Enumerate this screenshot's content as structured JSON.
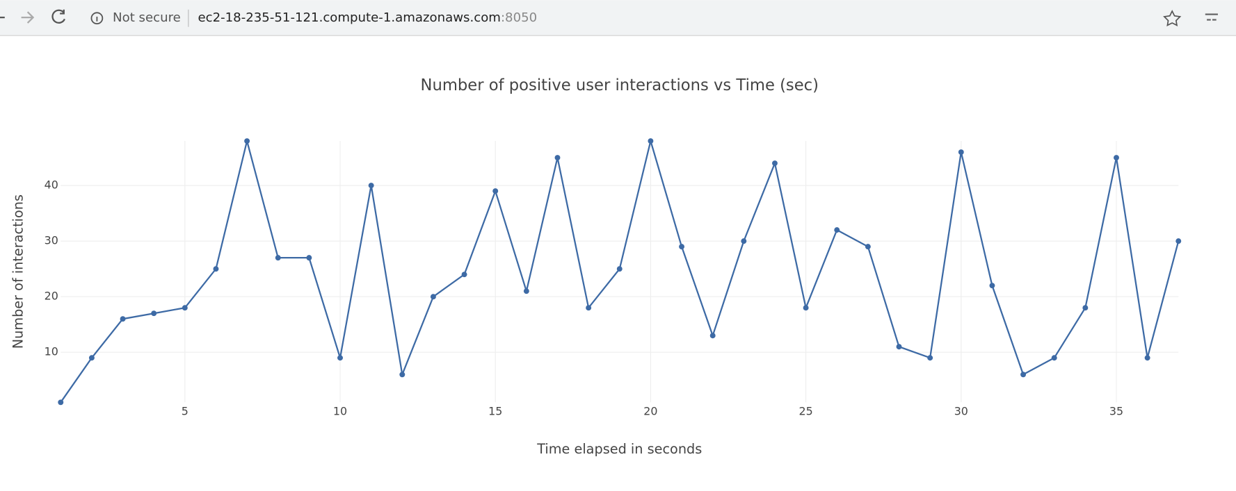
{
  "browser": {
    "security": "Not secure",
    "host": "ec2-18-235-51-121.compute-1.amazonaws.com",
    "port": ":8050"
  },
  "chart_data": {
    "type": "line",
    "title": "Number of positive user interactions vs Time (sec)",
    "x_label": "Time elapsed in seconds",
    "y_label": "Number of interactions",
    "x": [
      1,
      2,
      3,
      4,
      5,
      6,
      7,
      8,
      9,
      10,
      11,
      12,
      13,
      14,
      15,
      16,
      17,
      18,
      19,
      20,
      21,
      22,
      23,
      24,
      25,
      26,
      27,
      28,
      29,
      30,
      31,
      32,
      33,
      34,
      35,
      36,
      37
    ],
    "values": [
      1,
      9,
      16,
      17,
      18,
      25,
      48,
      27,
      27,
      9,
      40,
      6,
      20,
      24,
      39,
      21,
      45,
      18,
      25,
      48,
      29,
      13,
      30,
      44,
      18,
      32,
      29,
      11,
      9,
      46,
      22,
      6,
      9,
      18,
      45,
      9,
      30
    ],
    "color": "#3d6aa5",
    "xlim": [
      1,
      37
    ],
    "xticks": [
      5,
      10,
      15,
      20,
      25,
      30,
      35
    ],
    "ylim": [
      1,
      48
    ],
    "yticks": [
      10,
      20,
      30,
      40
    ],
    "grid": true
  }
}
